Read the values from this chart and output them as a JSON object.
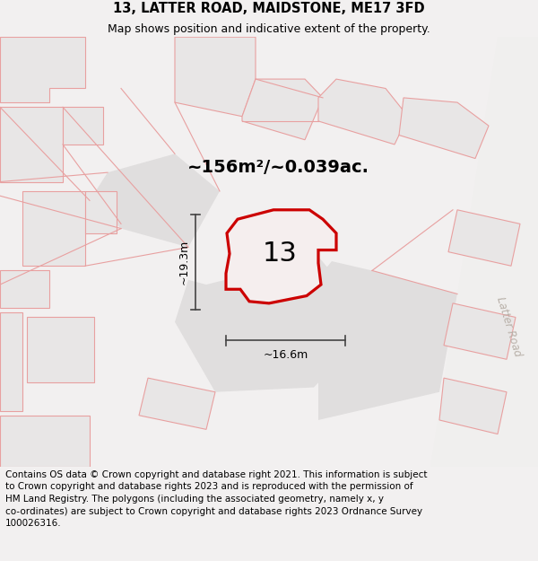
{
  "title": "13, LATTER ROAD, MAIDSTONE, ME17 3FD",
  "subtitle": "Map shows position and indicative extent of the property.",
  "footer_line1": "Contains OS data © Crown copyright and database right 2021. This information is subject",
  "footer_line2": "to Crown copyright and database rights 2023 and is reproduced with the permission of",
  "footer_line3": "HM Land Registry. The polygons (including the associated geometry, namely x, y",
  "footer_line4": "co-ordinates) are subject to Crown copyright and database rights 2023 Ordnance Survey",
  "footer_line5": "100026316.",
  "area_label": "~156m²/~0.039ac.",
  "width_label": "~16.6m",
  "height_label": "~19.3m",
  "number_label": "13",
  "road_text": "Latter Road",
  "bg_color": "#f2f0f0",
  "map_bg": "#ffffff",
  "building_fill": "#e8e6e6",
  "plot_fill": "#e0dede",
  "pink": "#e8a0a0",
  "red": "#cc0000",
  "meas_color": "#444444",
  "title_fontsize": 10.5,
  "subtitle_fontsize": 9,
  "footer_fontsize": 7.5,
  "area_fontsize": 14,
  "number_fontsize": 22,
  "meas_fontsize": 9
}
